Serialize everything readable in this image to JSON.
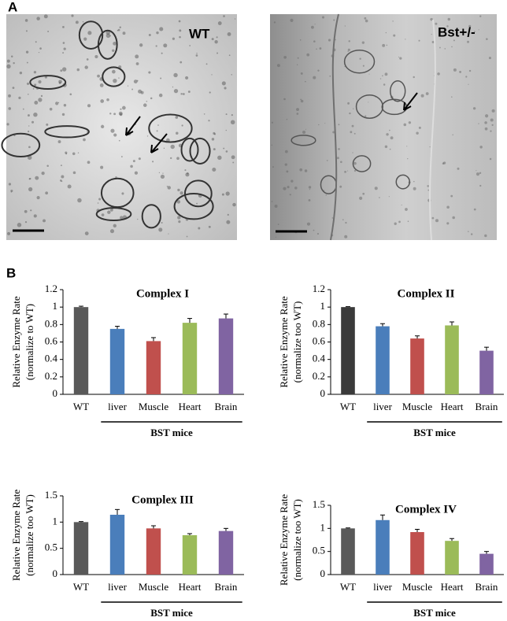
{
  "figure": {
    "label_a": "A",
    "label_b": "B",
    "micrographs": [
      "WT",
      "Bst+/-"
    ]
  },
  "chart_data": [
    {
      "type": "bar",
      "title": "Complex I",
      "y_label": [
        "Relative Enzyme Rate",
        "(normalize to WT)"
      ],
      "categories": [
        "WT",
        "liver",
        "Muscle",
        "Heart",
        "Brain"
      ],
      "values": [
        1.0,
        0.75,
        0.61,
        0.82,
        0.87
      ],
      "errors": [
        0.01,
        0.03,
        0.04,
        0.05,
        0.05
      ],
      "colors": [
        "#595959",
        "#4a7ebb",
        "#c0504d",
        "#9bbb59",
        "#8064a2"
      ],
      "group_label": "BST mice",
      "ylim": [
        0,
        1.2
      ],
      "yticks": [
        0,
        0.2,
        0.4,
        0.6,
        0.8,
        1,
        1.2
      ]
    },
    {
      "type": "bar",
      "title": "Complex II",
      "y_label": [
        "Relative Enzyme Rate",
        "(normalize too WT)"
      ],
      "categories": [
        "WT",
        "liver",
        "Muscle",
        "Heart",
        "Brain"
      ],
      "values": [
        1.0,
        0.78,
        0.64,
        0.79,
        0.5
      ],
      "errors": [
        0.005,
        0.03,
        0.03,
        0.04,
        0.04
      ],
      "colors": [
        "#3a3a3a",
        "#4a7ebb",
        "#c0504d",
        "#9bbb59",
        "#8064a2"
      ],
      "group_label": "BST mice",
      "ylim": [
        0,
        1.2
      ],
      "yticks": [
        0,
        0.2,
        0.4,
        0.6,
        0.8,
        1,
        1.2
      ]
    },
    {
      "type": "bar",
      "title": "Complex III",
      "y_label": [
        "Relative Enzyme Rate",
        "(normalize too WT)"
      ],
      "categories": [
        "WT",
        "liver",
        "Muscle",
        "Heart",
        "Brain"
      ],
      "values": [
        1.0,
        1.14,
        0.88,
        0.75,
        0.83
      ],
      "errors": [
        0.01,
        0.1,
        0.05,
        0.03,
        0.05
      ],
      "colors": [
        "#595959",
        "#4a7ebb",
        "#c0504d",
        "#9bbb59",
        "#8064a2"
      ],
      "group_label": "BST mice",
      "ylim": [
        0,
        1.5
      ],
      "yticks": [
        0,
        0.5,
        1,
        1.5
      ]
    },
    {
      "type": "bar",
      "title": "Complex IV",
      "y_label": [
        "Relative Enzyme Rate",
        "(normalize too WT)"
      ],
      "categories": [
        "WT",
        "liver",
        "Muscle",
        "Heart",
        "Brain"
      ],
      "values": [
        1.0,
        1.18,
        0.92,
        0.73,
        0.45
      ],
      "errors": [
        0.01,
        0.11,
        0.06,
        0.05,
        0.05
      ],
      "colors": [
        "#595959",
        "#4a7ebb",
        "#c0504d",
        "#9bbb59",
        "#8064a2"
      ],
      "group_label": "BST mice",
      "ylim": [
        0,
        1.5
      ],
      "yticks": [
        0,
        0.5,
        1,
        1.5
      ]
    }
  ]
}
